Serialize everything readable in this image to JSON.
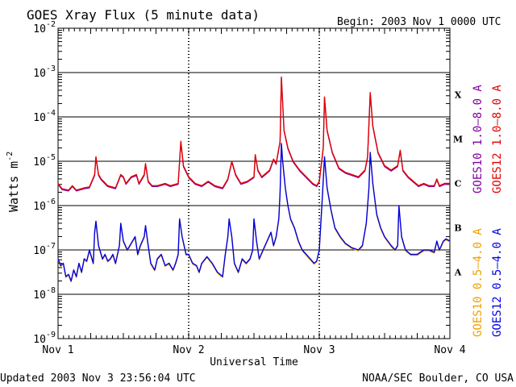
{
  "chart_data": {
    "type": "line",
    "title": "GOES Xray Flux (5 minute data)",
    "begin_label": "Begin:  2003 Nov 1 0000 UTC",
    "xlabel": "Universal Time",
    "ylabel": "Watts m",
    "ylabel_sup": "-2",
    "yscale": "log",
    "ylim": [
      1e-09,
      0.01
    ],
    "xlim_days": [
      0,
      3
    ],
    "x_ticks": [
      {
        "day": 0,
        "label": "Nov 1"
      },
      {
        "day": 1,
        "label": "Nov 2"
      },
      {
        "day": 2,
        "label": "Nov 3"
      },
      {
        "day": 3,
        "label": "Nov 4"
      }
    ],
    "y_ticks": [
      {
        "exp": -2,
        "label": "10",
        "sup": "-2"
      },
      {
        "exp": -3,
        "label": "10",
        "sup": "-3"
      },
      {
        "exp": -4,
        "label": "10",
        "sup": "-4"
      },
      {
        "exp": -5,
        "label": "10",
        "sup": "-5"
      },
      {
        "exp": -6,
        "label": "10",
        "sup": "-6"
      },
      {
        "exp": -7,
        "label": "10",
        "sup": "-7"
      },
      {
        "exp": -8,
        "label": "10",
        "sup": "-8"
      },
      {
        "exp": -9,
        "label": "10",
        "sup": "-9"
      }
    ],
    "flare_classes": [
      {
        "label": "X",
        "exp": -3.5
      },
      {
        "label": "M",
        "exp": -4.5
      },
      {
        "label": "C",
        "exp": -5.5
      },
      {
        "label": "B",
        "exp": -6.5
      },
      {
        "label": "A",
        "exp": -7.5
      }
    ],
    "legend_right": [
      {
        "label": "GOES10 1.0–8.0 A",
        "color": "#8000a0"
      },
      {
        "label": "GOES12 1.0–8.0 A",
        "color": "#e00000"
      }
    ],
    "legend_left": [
      {
        "label": "GOES10 0.5–4.0 A",
        "color": "#f0a000"
      },
      {
        "label": "GOES12 0.5–4.0 A",
        "color": "#0000e0"
      }
    ],
    "series": [
      {
        "name": "GOES12 1.0-8.0 A",
        "color": "#e00000",
        "points": [
          [
            0.0,
            -5.5
          ],
          [
            0.03,
            -5.62
          ],
          [
            0.08,
            -5.65
          ],
          [
            0.11,
            -5.55
          ],
          [
            0.14,
            -5.65
          ],
          [
            0.2,
            -5.6
          ],
          [
            0.24,
            -5.58
          ],
          [
            0.28,
            -5.3
          ],
          [
            0.29,
            -4.9
          ],
          [
            0.31,
            -5.3
          ],
          [
            0.33,
            -5.4
          ],
          [
            0.38,
            -5.55
          ],
          [
            0.44,
            -5.6
          ],
          [
            0.48,
            -5.3
          ],
          [
            0.5,
            -5.35
          ],
          [
            0.52,
            -5.5
          ],
          [
            0.56,
            -5.35
          ],
          [
            0.6,
            -5.3
          ],
          [
            0.62,
            -5.5
          ],
          [
            0.66,
            -5.3
          ],
          [
            0.67,
            -5.05
          ],
          [
            0.69,
            -5.45
          ],
          [
            0.72,
            -5.55
          ],
          [
            0.76,
            -5.55
          ],
          [
            0.82,
            -5.5
          ],
          [
            0.86,
            -5.55
          ],
          [
            0.92,
            -5.5
          ],
          [
            0.94,
            -4.55
          ],
          [
            0.96,
            -5.1
          ],
          [
            1.0,
            -5.35
          ],
          [
            1.05,
            -5.5
          ],
          [
            1.1,
            -5.55
          ],
          [
            1.15,
            -5.45
          ],
          [
            1.2,
            -5.55
          ],
          [
            1.26,
            -5.6
          ],
          [
            1.3,
            -5.4
          ],
          [
            1.33,
            -5.0
          ],
          [
            1.36,
            -5.3
          ],
          [
            1.4,
            -5.5
          ],
          [
            1.45,
            -5.45
          ],
          [
            1.5,
            -5.35
          ],
          [
            1.51,
            -4.85
          ],
          [
            1.53,
            -5.2
          ],
          [
            1.56,
            -5.35
          ],
          [
            1.6,
            -5.25
          ],
          [
            1.62,
            -5.2
          ],
          [
            1.65,
            -4.95
          ],
          [
            1.67,
            -5.05
          ],
          [
            1.7,
            -4.55
          ],
          [
            1.71,
            -3.1
          ],
          [
            1.73,
            -4.3
          ],
          [
            1.76,
            -4.7
          ],
          [
            1.8,
            -5.0
          ],
          [
            1.85,
            -5.2
          ],
          [
            1.9,
            -5.35
          ],
          [
            1.95,
            -5.5
          ],
          [
            1.98,
            -5.55
          ],
          [
            2.0,
            -5.45
          ],
          [
            2.03,
            -4.7
          ],
          [
            2.04,
            -3.55
          ],
          [
            2.06,
            -4.3
          ],
          [
            2.1,
            -4.8
          ],
          [
            2.15,
            -5.15
          ],
          [
            2.2,
            -5.25
          ],
          [
            2.25,
            -5.3
          ],
          [
            2.3,
            -5.35
          ],
          [
            2.35,
            -5.2
          ],
          [
            2.37,
            -4.9
          ],
          [
            2.39,
            -3.45
          ],
          [
            2.41,
            -4.2
          ],
          [
            2.45,
            -4.8
          ],
          [
            2.5,
            -5.1
          ],
          [
            2.55,
            -5.2
          ],
          [
            2.6,
            -5.1
          ],
          [
            2.62,
            -4.75
          ],
          [
            2.64,
            -5.2
          ],
          [
            2.68,
            -5.35
          ],
          [
            2.72,
            -5.45
          ],
          [
            2.76,
            -5.55
          ],
          [
            2.8,
            -5.5
          ],
          [
            2.84,
            -5.55
          ],
          [
            2.88,
            -5.55
          ],
          [
            2.9,
            -5.4
          ],
          [
            2.92,
            -5.55
          ],
          [
            2.96,
            -5.5
          ],
          [
            3.0,
            -5.5
          ]
        ]
      },
      {
        "name": "GOES12 0.5-4.0 A",
        "color": "#0000e0",
        "points": [
          [
            0.0,
            -7.2
          ],
          [
            0.02,
            -7.35
          ],
          [
            0.04,
            -7.3
          ],
          [
            0.06,
            -7.6
          ],
          [
            0.08,
            -7.55
          ],
          [
            0.1,
            -7.7
          ],
          [
            0.12,
            -7.45
          ],
          [
            0.14,
            -7.6
          ],
          [
            0.16,
            -7.3
          ],
          [
            0.18,
            -7.5
          ],
          [
            0.2,
            -7.2
          ],
          [
            0.22,
            -7.25
          ],
          [
            0.24,
            -7.0
          ],
          [
            0.27,
            -7.3
          ],
          [
            0.28,
            -6.6
          ],
          [
            0.29,
            -6.35
          ],
          [
            0.31,
            -6.9
          ],
          [
            0.34,
            -7.2
          ],
          [
            0.36,
            -7.1
          ],
          [
            0.38,
            -7.25
          ],
          [
            0.4,
            -7.2
          ],
          [
            0.42,
            -7.1
          ],
          [
            0.44,
            -7.3
          ],
          [
            0.47,
            -6.9
          ],
          [
            0.48,
            -6.4
          ],
          [
            0.5,
            -6.8
          ],
          [
            0.53,
            -7.0
          ],
          [
            0.56,
            -6.85
          ],
          [
            0.59,
            -6.7
          ],
          [
            0.61,
            -7.1
          ],
          [
            0.63,
            -6.9
          ],
          [
            0.66,
            -6.7
          ],
          [
            0.67,
            -6.45
          ],
          [
            0.69,
            -6.9
          ],
          [
            0.71,
            -7.3
          ],
          [
            0.74,
            -7.45
          ],
          [
            0.76,
            -7.2
          ],
          [
            0.79,
            -7.1
          ],
          [
            0.82,
            -7.35
          ],
          [
            0.85,
            -7.3
          ],
          [
            0.88,
            -7.45
          ],
          [
            0.9,
            -7.3
          ],
          [
            0.92,
            -7.1
          ],
          [
            0.93,
            -6.3
          ],
          [
            0.95,
            -6.7
          ],
          [
            0.98,
            -7.1
          ],
          [
            1.0,
            -7.1
          ],
          [
            1.03,
            -7.3
          ],
          [
            1.06,
            -7.35
          ],
          [
            1.08,
            -7.5
          ],
          [
            1.1,
            -7.3
          ],
          [
            1.14,
            -7.15
          ],
          [
            1.18,
            -7.3
          ],
          [
            1.22,
            -7.5
          ],
          [
            1.26,
            -7.6
          ],
          [
            1.28,
            -7.1
          ],
          [
            1.3,
            -6.7
          ],
          [
            1.31,
            -6.3
          ],
          [
            1.33,
            -6.7
          ],
          [
            1.35,
            -7.3
          ],
          [
            1.38,
            -7.5
          ],
          [
            1.41,
            -7.2
          ],
          [
            1.44,
            -7.3
          ],
          [
            1.47,
            -7.2
          ],
          [
            1.49,
            -7.0
          ],
          [
            1.5,
            -6.3
          ],
          [
            1.52,
            -6.8
          ],
          [
            1.54,
            -7.2
          ],
          [
            1.57,
            -7.0
          ],
          [
            1.6,
            -6.8
          ],
          [
            1.63,
            -6.6
          ],
          [
            1.65,
            -6.9
          ],
          [
            1.67,
            -6.7
          ],
          [
            1.69,
            -6.3
          ],
          [
            1.7,
            -5.7
          ],
          [
            1.71,
            -4.6
          ],
          [
            1.72,
            -5.0
          ],
          [
            1.74,
            -5.6
          ],
          [
            1.76,
            -6.0
          ],
          [
            1.78,
            -6.3
          ],
          [
            1.81,
            -6.5
          ],
          [
            1.84,
            -6.8
          ],
          [
            1.87,
            -7.0
          ],
          [
            1.9,
            -7.1
          ],
          [
            1.93,
            -7.2
          ],
          [
            1.96,
            -7.3
          ],
          [
            1.98,
            -7.25
          ],
          [
            2.0,
            -7.0
          ],
          [
            2.02,
            -6.0
          ],
          [
            2.04,
            -4.9
          ],
          [
            2.06,
            -5.6
          ],
          [
            2.09,
            -6.1
          ],
          [
            2.12,
            -6.5
          ],
          [
            2.16,
            -6.7
          ],
          [
            2.2,
            -6.85
          ],
          [
            2.25,
            -6.95
          ],
          [
            2.3,
            -7.0
          ],
          [
            2.33,
            -6.9
          ],
          [
            2.36,
            -6.4
          ],
          [
            2.38,
            -5.6
          ],
          [
            2.39,
            -4.8
          ],
          [
            2.41,
            -5.5
          ],
          [
            2.44,
            -6.2
          ],
          [
            2.47,
            -6.5
          ],
          [
            2.5,
            -6.7
          ],
          [
            2.55,
            -6.9
          ],
          [
            2.58,
            -7.0
          ],
          [
            2.6,
            -6.9
          ],
          [
            2.61,
            -6.0
          ],
          [
            2.63,
            -6.7
          ],
          [
            2.66,
            -7.0
          ],
          [
            2.7,
            -7.1
          ],
          [
            2.75,
            -7.1
          ],
          [
            2.8,
            -7.0
          ],
          [
            2.84,
            -7.0
          ],
          [
            2.88,
            -7.05
          ],
          [
            2.9,
            -6.8
          ],
          [
            2.92,
            -7.0
          ],
          [
            2.95,
            -6.8
          ],
          [
            2.97,
            -6.75
          ],
          [
            3.0,
            -6.8
          ]
        ]
      }
    ]
  },
  "footer": {
    "updated": "Updated 2003 Nov  3 23:56:04 UTC",
    "source": "NOAA/SEC Boulder, CO USA"
  }
}
